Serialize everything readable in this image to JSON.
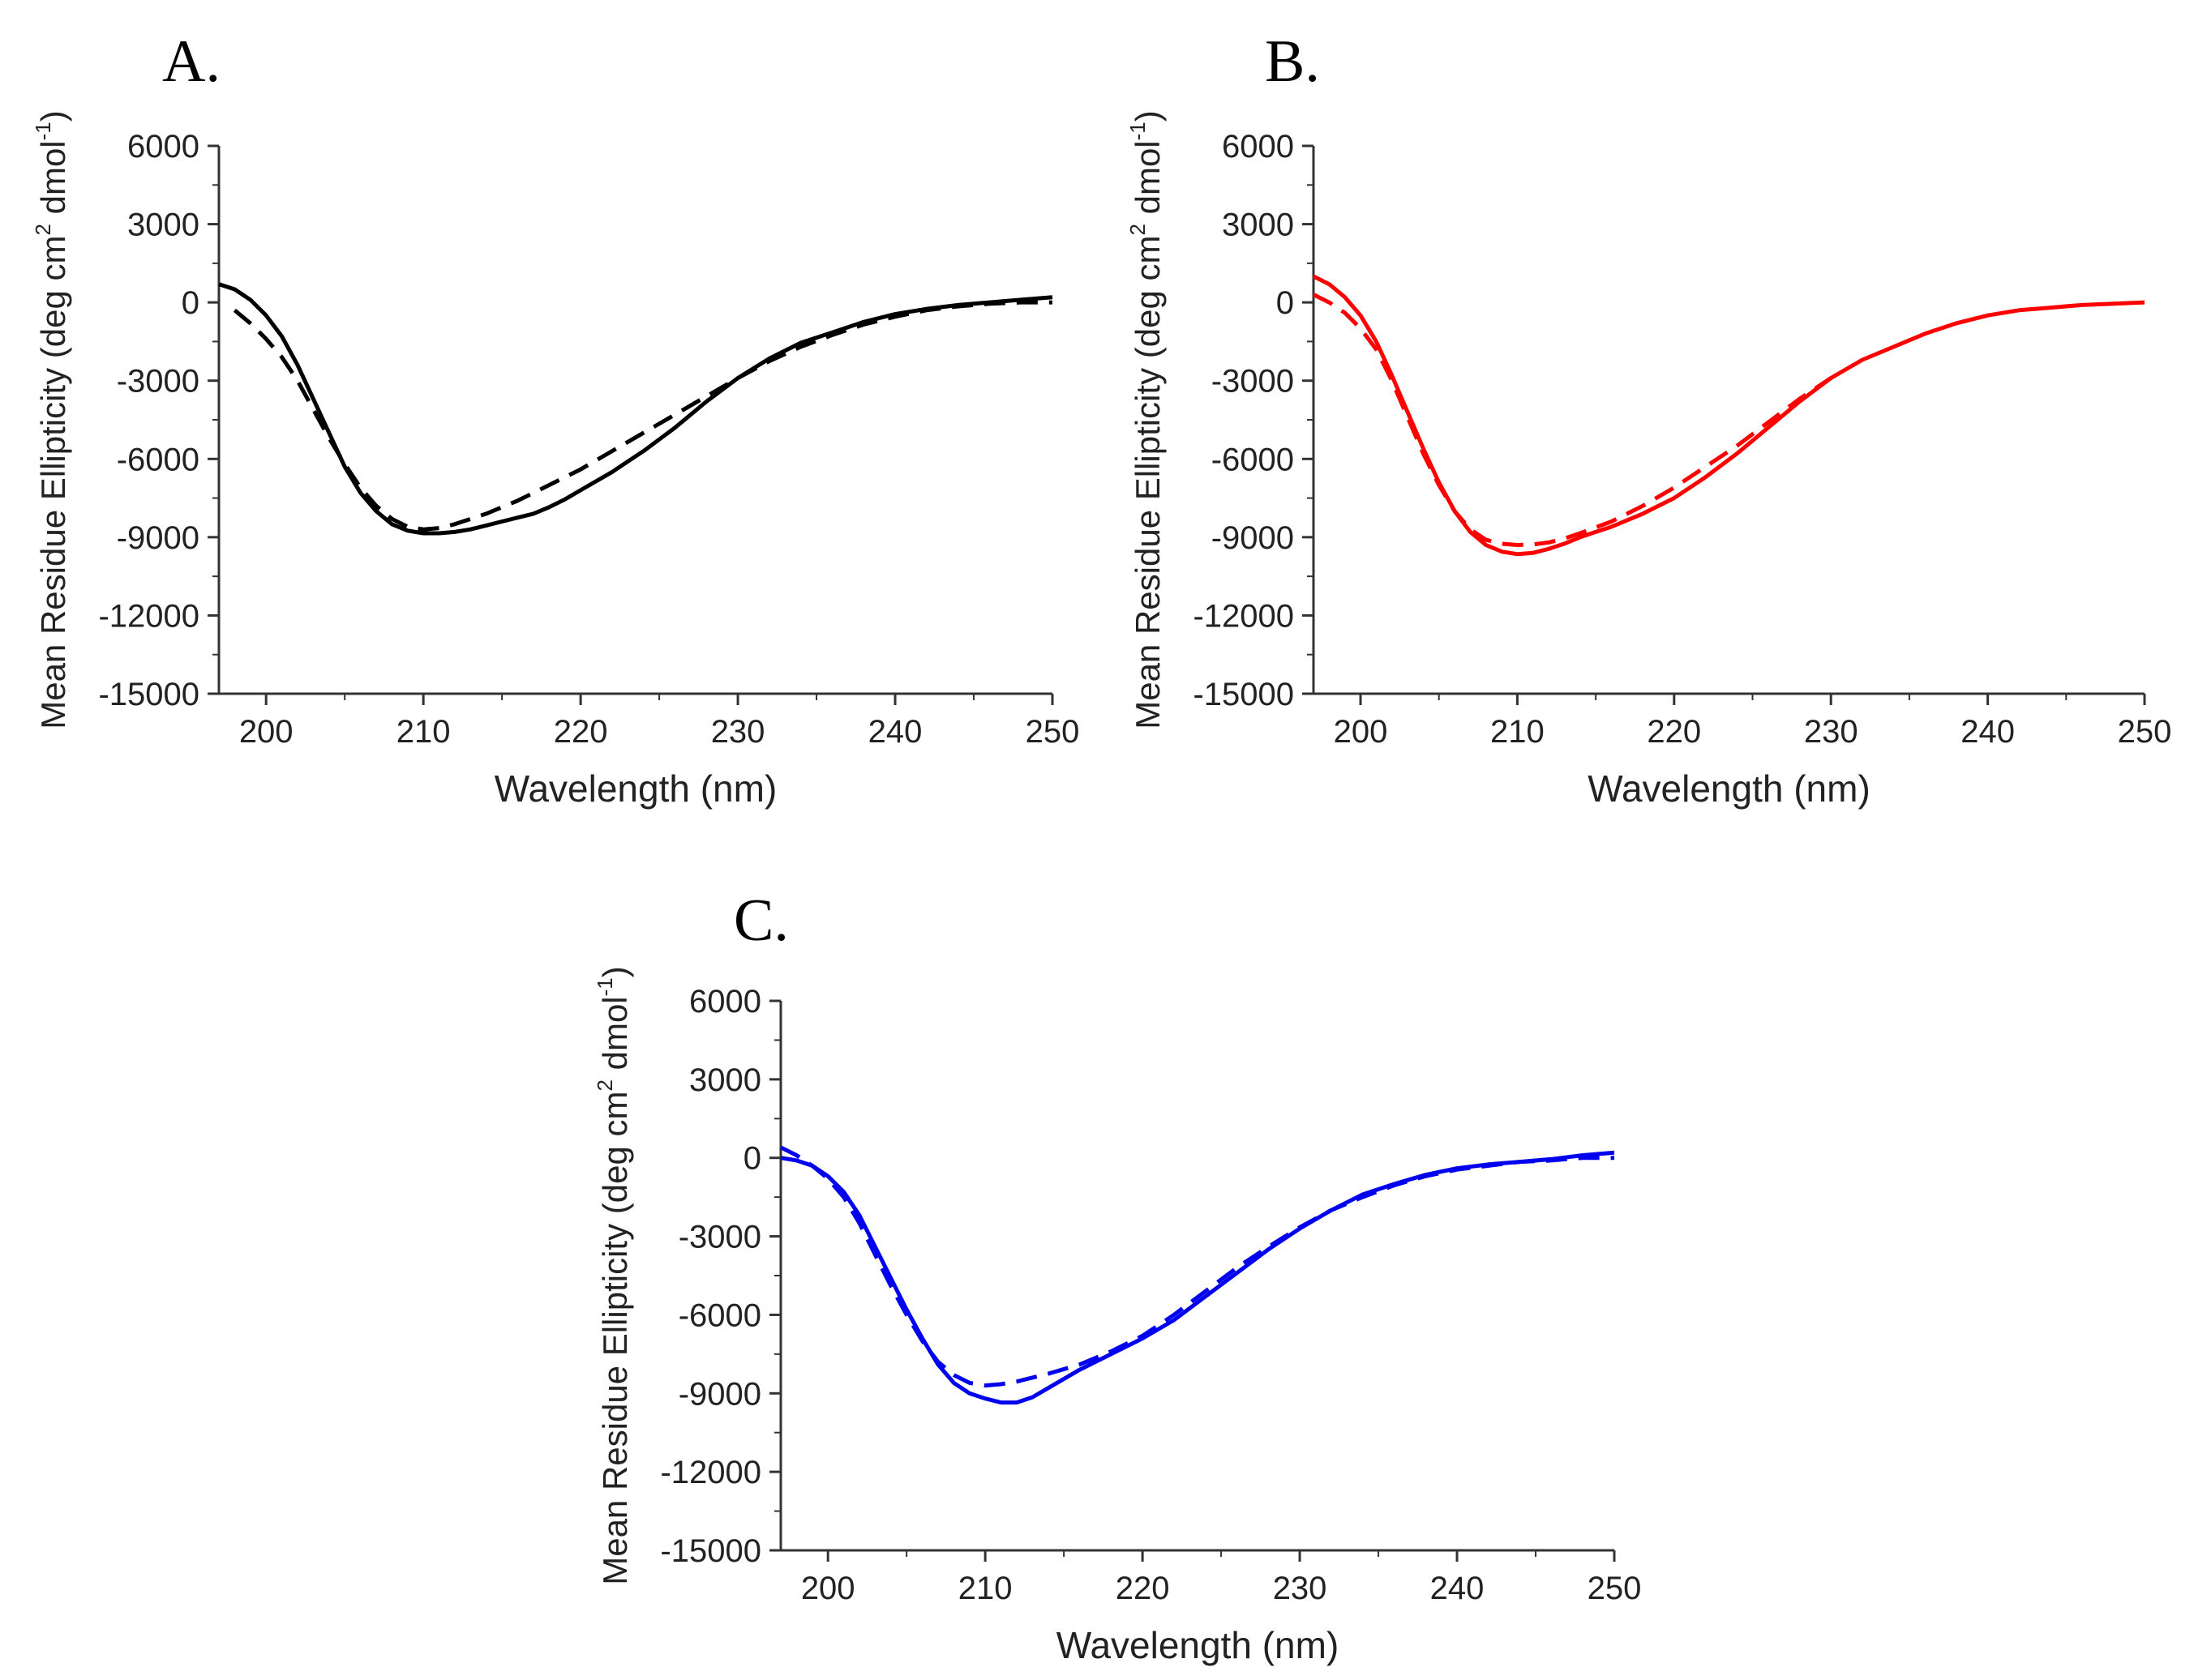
{
  "chart_data": [
    {
      "type": "line",
      "panel_label": "A.",
      "color": "#000000",
      "xlabel": "Wavelength (nm)",
      "ylabel": "Mean Residue Ellipticity (deg cm",
      "ylabel_sup1": "2",
      "ylabel_mid": " dmol",
      "ylabel_sup2": "-1",
      "ylabel_end": ")",
      "xlim": [
        197,
        250
      ],
      "ylim": [
        -15000,
        6000
      ],
      "xticks": [
        200,
        210,
        220,
        230,
        240,
        250
      ],
      "xtick_labels": [
        "200",
        "210",
        "220",
        "230",
        "240",
        "250"
      ],
      "yticks": [
        6000,
        3000,
        0,
        -3000,
        -6000,
        -9000,
        -12000,
        -15000
      ],
      "ytick_labels": [
        "6000",
        "3000",
        "0",
        "-3000",
        "-6000",
        "-9000",
        "-12000",
        "-15000"
      ],
      "grid": false,
      "series": [
        {
          "name": "solid",
          "style": "solid",
          "x": [
            197,
            198,
            199,
            200,
            201,
            202,
            203,
            204,
            205,
            206,
            207,
            208,
            209,
            210,
            211,
            212,
            213,
            214,
            215,
            216,
            217,
            218,
            219,
            220,
            222,
            224,
            226,
            228,
            230,
            232,
            234,
            236,
            238,
            240,
            242,
            244,
            246,
            248,
            250
          ],
          "y": [
            700,
            500,
            100,
            -500,
            -1300,
            -2400,
            -3700,
            -5000,
            -6300,
            -7300,
            -8000,
            -8500,
            -8750,
            -8850,
            -8850,
            -8800,
            -8700,
            -8550,
            -8400,
            -8250,
            -8100,
            -7850,
            -7550,
            -7200,
            -6500,
            -5700,
            -4800,
            -3800,
            -2900,
            -2150,
            -1550,
            -1150,
            -750,
            -450,
            -250,
            -100,
            0,
            100,
            200
          ]
        },
        {
          "name": "dashed",
          "style": "dashed",
          "x": [
            198,
            199,
            200,
            201,
            202,
            203,
            204,
            205,
            206,
            207,
            208,
            209,
            210,
            211,
            212,
            213,
            214,
            216,
            218,
            220,
            222,
            224,
            226,
            228,
            230,
            232,
            234,
            236,
            238,
            240,
            242,
            244,
            246,
            248,
            250
          ],
          "y": [
            -300,
            -800,
            -1400,
            -2100,
            -3000,
            -4100,
            -5200,
            -6200,
            -7100,
            -7800,
            -8300,
            -8600,
            -8700,
            -8650,
            -8500,
            -8300,
            -8100,
            -7600,
            -7000,
            -6400,
            -5700,
            -5000,
            -4300,
            -3600,
            -2900,
            -2250,
            -1700,
            -1250,
            -850,
            -550,
            -300,
            -150,
            -50,
            0,
            0
          ]
        }
      ]
    },
    {
      "type": "line",
      "panel_label": "B.",
      "color": "#ff0000",
      "xlabel": "Wavelength (nm)",
      "ylabel": "Mean Residue Ellipticity (deg cm",
      "ylabel_sup1": "2",
      "ylabel_mid": " dmol",
      "ylabel_sup2": "-1",
      "ylabel_end": ")",
      "xlim": [
        197,
        250
      ],
      "ylim": [
        -15000,
        6000
      ],
      "xticks": [
        200,
        210,
        220,
        230,
        240,
        250
      ],
      "xtick_labels": [
        "200",
        "210",
        "220",
        "230",
        "240",
        "250"
      ],
      "yticks": [
        6000,
        3000,
        0,
        -3000,
        -6000,
        -9000,
        -12000,
        -15000
      ],
      "ytick_labels": [
        "6000",
        "3000",
        "0",
        "-3000",
        "-6000",
        "-9000",
        "-12000",
        "-15000"
      ],
      "grid": false,
      "series": [
        {
          "name": "solid",
          "style": "solid",
          "x": [
            197,
            198,
            199,
            200,
            201,
            202,
            203,
            204,
            205,
            206,
            207,
            208,
            209,
            210,
            211,
            212,
            213,
            214,
            215,
            216,
            218,
            220,
            222,
            224,
            226,
            228,
            230,
            232,
            234,
            236,
            238,
            240,
            242,
            244,
            246,
            248,
            250
          ],
          "y": [
            1000,
            700,
            200,
            -500,
            -1500,
            -2800,
            -4200,
            -5600,
            -6900,
            -8000,
            -8800,
            -9300,
            -9550,
            -9650,
            -9600,
            -9450,
            -9250,
            -9000,
            -8800,
            -8600,
            -8100,
            -7500,
            -6700,
            -5800,
            -4800,
            -3800,
            -2900,
            -2200,
            -1700,
            -1200,
            -800,
            -500,
            -300,
            -200,
            -100,
            -50,
            0
          ]
        },
        {
          "name": "dashed",
          "style": "dashed",
          "x": [
            197,
            198,
            199,
            200,
            201,
            202,
            203,
            204,
            205,
            206,
            207,
            208,
            209,
            210,
            211,
            212,
            213,
            214,
            216,
            218,
            220,
            222,
            224,
            226,
            228,
            230
          ],
          "y": [
            300,
            0,
            -400,
            -1000,
            -1800,
            -3000,
            -4400,
            -5800,
            -7000,
            -8000,
            -8700,
            -9100,
            -9250,
            -9300,
            -9280,
            -9200,
            -9050,
            -8850,
            -8400,
            -7800,
            -7100,
            -6300,
            -5500,
            -4600,
            -3700,
            -2900
          ]
        }
      ]
    },
    {
      "type": "line",
      "panel_label": "C.",
      "color": "#0000ee",
      "xlabel": "Wavelength (nm)",
      "ylabel": "Mean Residue Ellipticity (deg cm",
      "ylabel_sup1": "2",
      "ylabel_mid": " dmol",
      "ylabel_sup2": "-1",
      "ylabel_end": ")",
      "xlim": [
        197,
        250
      ],
      "ylim": [
        -15000,
        6000
      ],
      "xticks": [
        200,
        210,
        220,
        230,
        240,
        250
      ],
      "xtick_labels": [
        "200",
        "210",
        "220",
        "230",
        "240",
        "250"
      ],
      "yticks": [
        6000,
        3000,
        0,
        -3000,
        -6000,
        -9000,
        -12000,
        -15000
      ],
      "ytick_labels": [
        "6000",
        "3000",
        "0",
        "-3000",
        "-6000",
        "-9000",
        "-12000",
        "-15000"
      ],
      "grid": false,
      "series": [
        {
          "name": "solid",
          "style": "solid",
          "x": [
            197,
            198,
            199,
            200,
            201,
            202,
            203,
            204,
            205,
            206,
            207,
            208,
            209,
            210,
            211,
            212,
            213,
            214,
            216,
            218,
            220,
            222,
            224,
            226,
            228,
            230,
            232,
            234,
            236,
            238,
            240,
            242,
            244,
            246,
            248,
            250
          ],
          "y": [
            0,
            -100,
            -300,
            -700,
            -1300,
            -2200,
            -3400,
            -4600,
            -5800,
            -6900,
            -7900,
            -8600,
            -9000,
            -9200,
            -9350,
            -9350,
            -9150,
            -8800,
            -8100,
            -7500,
            -6900,
            -6200,
            -5300,
            -4400,
            -3500,
            -2700,
            -2000,
            -1400,
            -1000,
            -650,
            -400,
            -250,
            -150,
            -50,
            100,
            200
          ]
        },
        {
          "name": "dashed",
          "style": "dashed",
          "x": [
            197,
            198,
            199,
            200,
            201,
            202,
            203,
            204,
            205,
            206,
            207,
            208,
            209,
            210,
            211,
            212,
            213,
            214,
            216,
            218,
            220,
            222,
            224,
            226,
            228,
            230,
            232,
            234,
            236,
            238,
            240,
            242,
            244,
            246,
            248,
            250
          ],
          "y": [
            400,
            100,
            -300,
            -800,
            -1500,
            -2500,
            -3700,
            -4900,
            -6000,
            -7000,
            -7800,
            -8300,
            -8600,
            -8700,
            -8650,
            -8550,
            -8400,
            -8250,
            -7900,
            -7400,
            -6800,
            -6000,
            -5100,
            -4200,
            -3400,
            -2650,
            -2000,
            -1500,
            -1050,
            -700,
            -450,
            -300,
            -150,
            -100,
            0,
            0
          ]
        }
      ]
    }
  ]
}
